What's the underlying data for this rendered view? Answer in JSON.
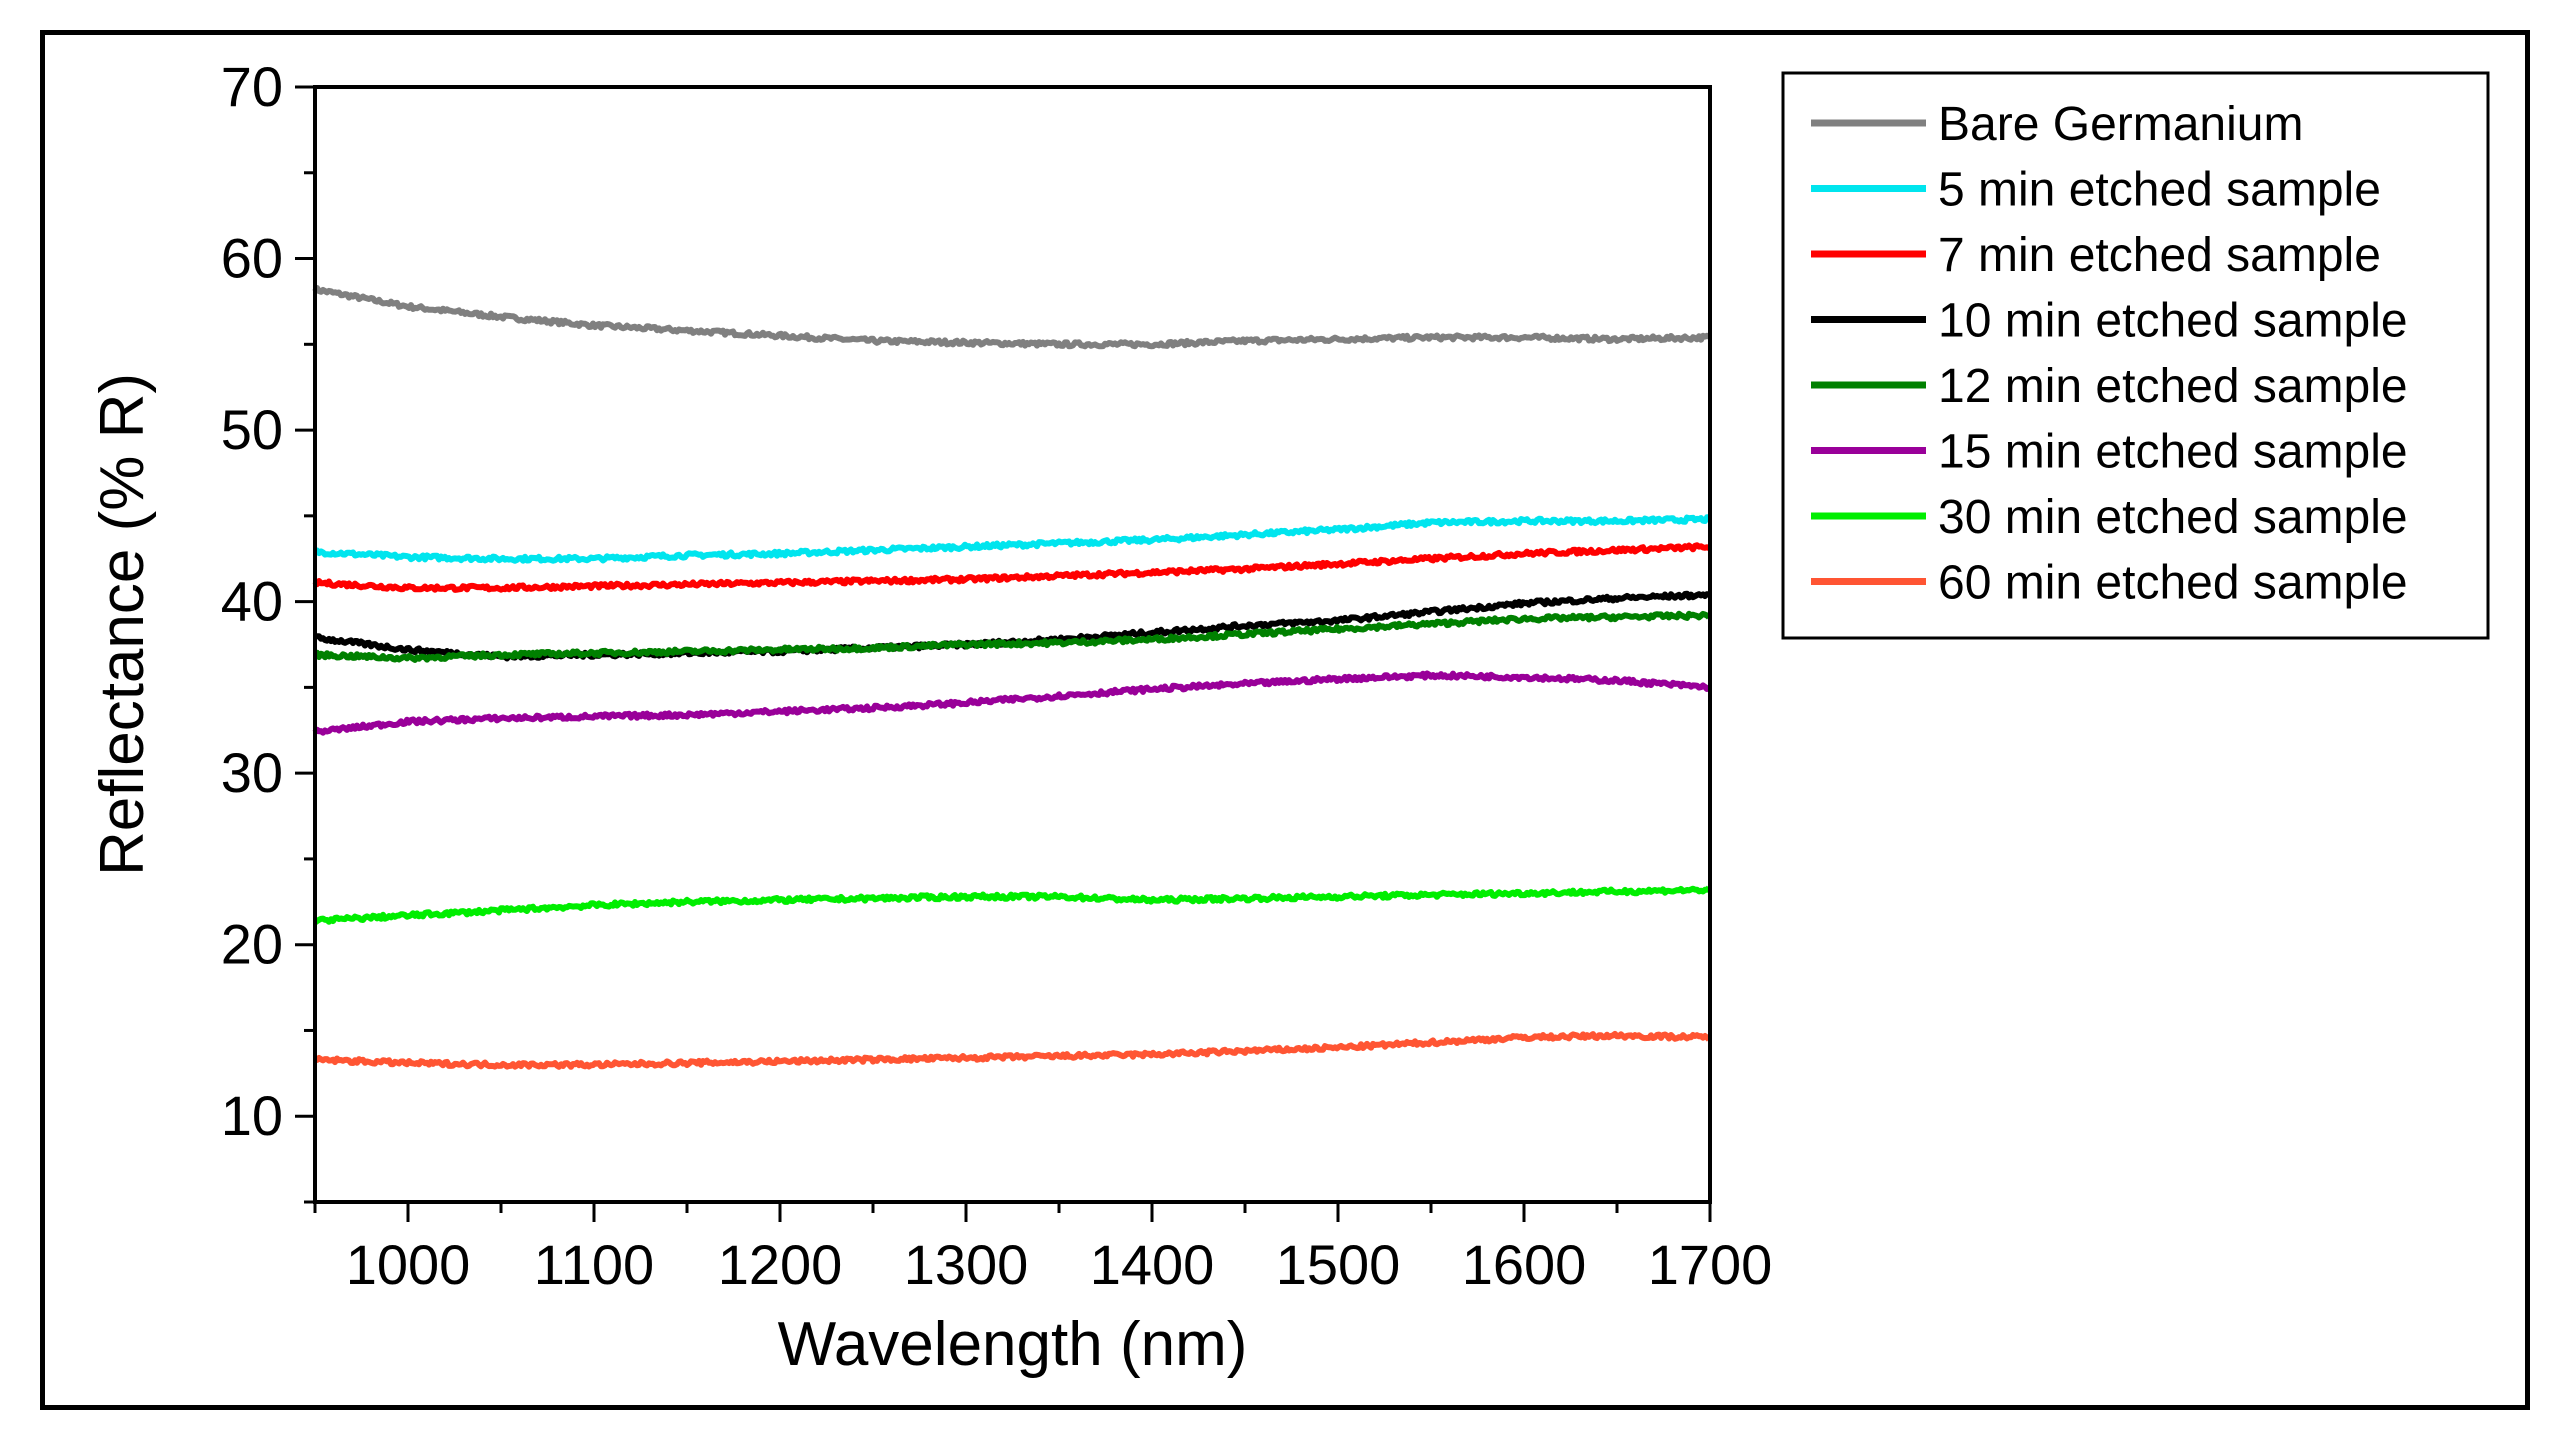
{
  "chart_data": {
    "type": "line",
    "title": "",
    "xlabel": "Wavelength (nm)",
    "ylabel": "Reflectance (% R)",
    "xlim": [
      950,
      1700
    ],
    "ylim": [
      5,
      70
    ],
    "xticks": [
      1000,
      1100,
      1200,
      1300,
      1400,
      1500,
      1600,
      1700
    ],
    "yticks": [
      10,
      20,
      30,
      40,
      50,
      60,
      70
    ],
    "x": [
      950,
      1000,
      1050,
      1100,
      1150,
      1200,
      1250,
      1300,
      1350,
      1400,
      1450,
      1500,
      1550,
      1600,
      1650,
      1700
    ],
    "legend_position": "top-right",
    "series": [
      {
        "name": "Bare Germanium",
        "color": "#808080",
        "values": [
          58.2,
          57.2,
          56.6,
          56.1,
          55.8,
          55.5,
          55.2,
          55.1,
          55.0,
          55.0,
          55.2,
          55.3,
          55.4,
          55.4,
          55.3,
          55.4
        ]
      },
      {
        "name": "5 min etched sample",
        "color": "#00e5ee",
        "values": [
          42.9,
          42.6,
          42.5,
          42.5,
          42.7,
          42.8,
          43.0,
          43.2,
          43.4,
          43.6,
          43.9,
          44.2,
          44.6,
          44.7,
          44.7,
          44.8
        ]
      },
      {
        "name": "7 min etched sample",
        "color": "#ff0000",
        "values": [
          41.1,
          40.8,
          40.8,
          40.9,
          41.0,
          41.1,
          41.2,
          41.3,
          41.5,
          41.7,
          41.9,
          42.2,
          42.5,
          42.8,
          43.0,
          43.2
        ]
      },
      {
        "name": "10 min etched sample",
        "color": "#000000",
        "values": [
          37.9,
          37.2,
          36.8,
          36.9,
          37.0,
          37.1,
          37.3,
          37.5,
          37.8,
          38.2,
          38.6,
          38.9,
          39.4,
          39.9,
          40.2,
          40.4
        ]
      },
      {
        "name": "12 min etched sample",
        "color": "#008000",
        "values": [
          36.9,
          36.7,
          36.9,
          37.0,
          37.1,
          37.2,
          37.3,
          37.5,
          37.6,
          37.8,
          38.1,
          38.4,
          38.7,
          39.0,
          39.1,
          39.2
        ]
      },
      {
        "name": "15 min etched sample",
        "color": "#990099",
        "values": [
          32.4,
          33.0,
          33.2,
          33.3,
          33.4,
          33.6,
          33.8,
          34.1,
          34.5,
          34.9,
          35.2,
          35.5,
          35.7,
          35.6,
          35.4,
          35.0
        ]
      },
      {
        "name": "30 min etched sample",
        "color": "#00ee00",
        "values": [
          21.4,
          21.7,
          22.0,
          22.3,
          22.5,
          22.6,
          22.7,
          22.8,
          22.8,
          22.6,
          22.7,
          22.8,
          22.9,
          23.0,
          23.1,
          23.2
        ]
      },
      {
        "name": "60 min etched sample",
        "color": "#ff5533",
        "values": [
          13.3,
          13.1,
          13.0,
          13.0,
          13.1,
          13.2,
          13.3,
          13.4,
          13.5,
          13.6,
          13.8,
          14.0,
          14.3,
          14.6,
          14.7,
          14.6
        ]
      }
    ]
  }
}
